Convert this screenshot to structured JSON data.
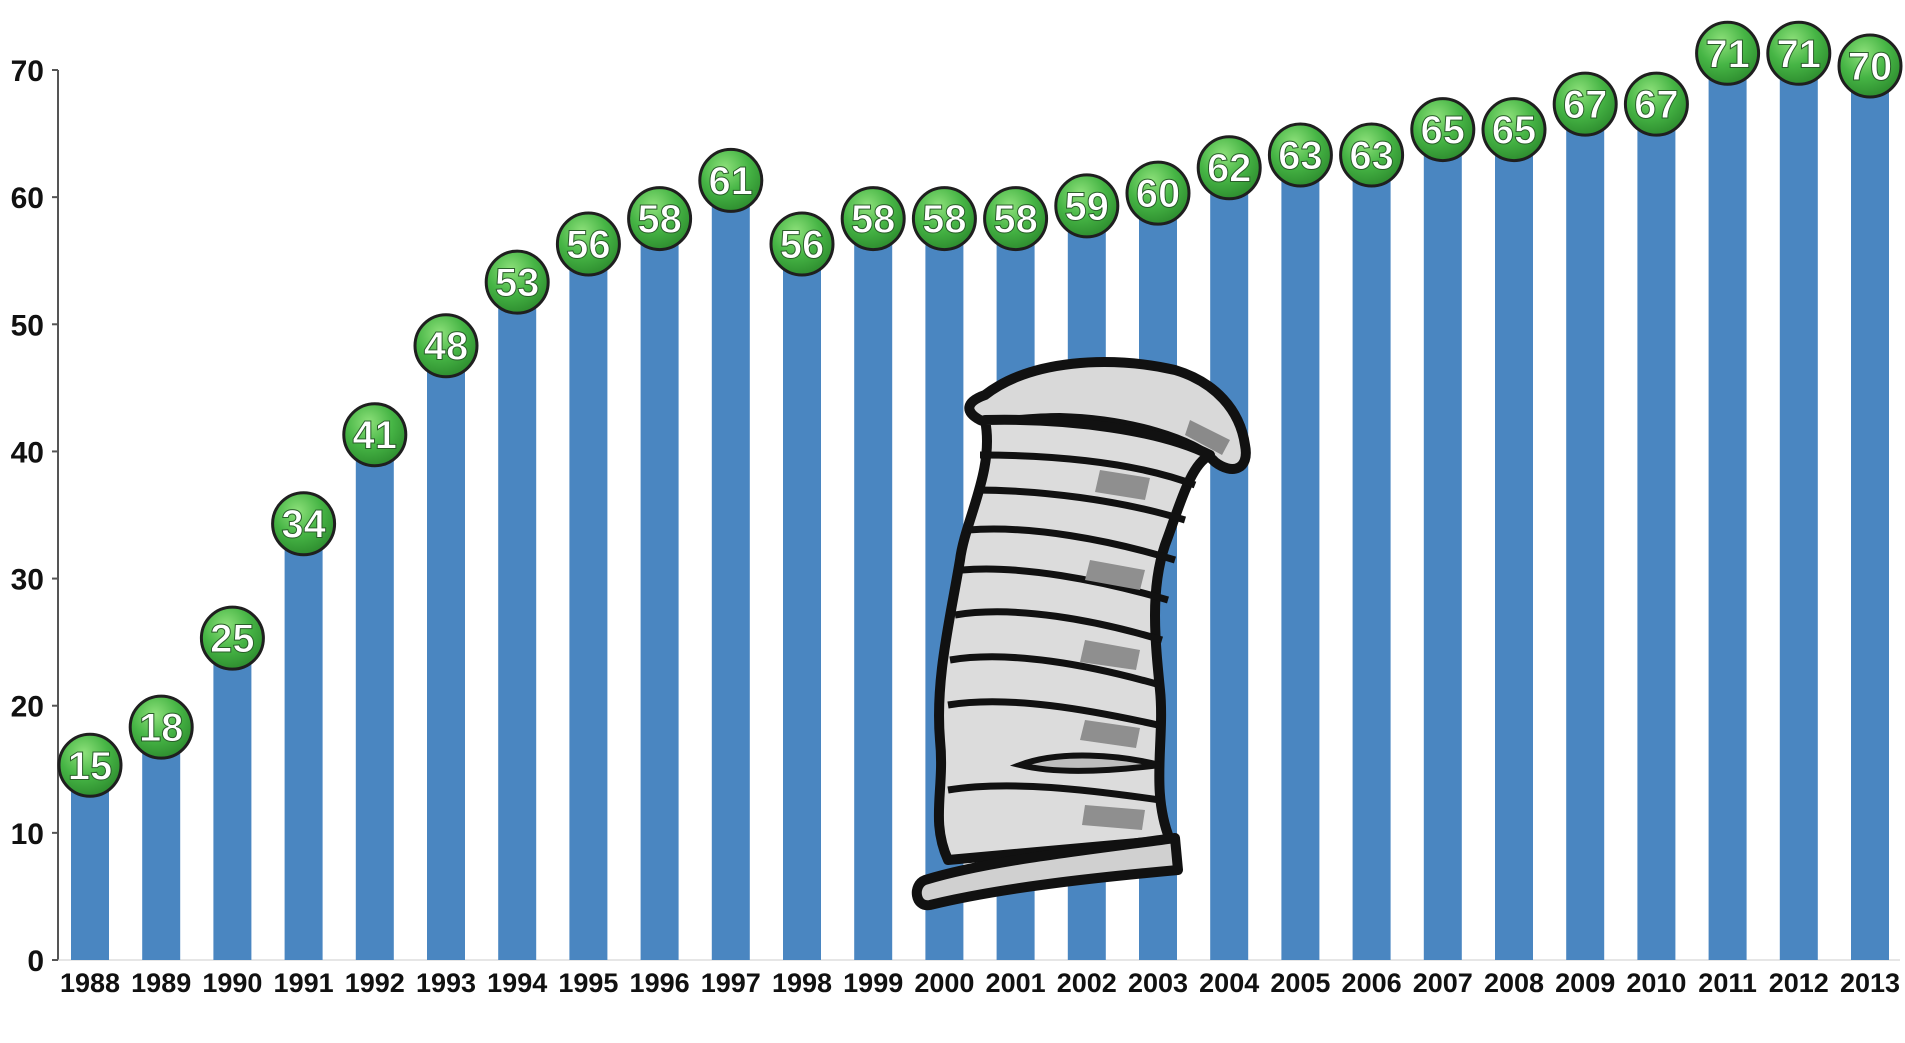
{
  "chart_data": {
    "type": "bar",
    "title": "",
    "xlabel": "",
    "ylabel": "",
    "categories": [
      "1988",
      "1989",
      "1990",
      "1991",
      "1992",
      "1993",
      "1994",
      "1995",
      "1996",
      "1997",
      "1998",
      "1999",
      "2000",
      "2001",
      "2002",
      "2003",
      "2004",
      "2005",
      "2006",
      "2007",
      "2008",
      "2009",
      "2010",
      "2011",
      "2012",
      "2013"
    ],
    "values": [
      15,
      18,
      25,
      34,
      41,
      48,
      53,
      56,
      58,
      61,
      56,
      58,
      58,
      58,
      59,
      60,
      62,
      63,
      63,
      65,
      65,
      67,
      67,
      71,
      71,
      70
    ],
    "ylim": [
      0,
      70
    ],
    "yticks": [
      "0",
      "10",
      "20",
      "30",
      "40",
      "50",
      "60",
      "70"
    ],
    "grid": false,
    "legend": "none",
    "colors": {
      "bar": "#4a86c1",
      "label_badge": "#3fae3f",
      "label_badge_highlight": "#7ed66b",
      "label_text": "#ffffff",
      "axis": "#555555"
    },
    "illustration": "flexible-duct-pipe"
  }
}
